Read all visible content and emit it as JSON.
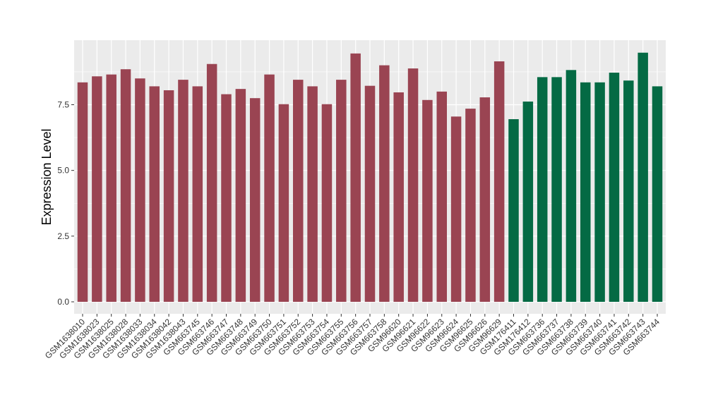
{
  "chart_data": {
    "type": "bar",
    "title": "",
    "xlabel": "",
    "ylabel": "Expression Level",
    "ylim": [
      0,
      9.8
    ],
    "yticks": [
      0,
      2.5,
      5,
      7.5
    ],
    "ytick_labels": [
      "0.0",
      "2.5",
      "5.0",
      "7.5"
    ],
    "grid": true,
    "legend": "none",
    "colors": {
      "group1": "#9a4452",
      "group2": "#046a44",
      "panel": "#ebebeb",
      "gridline": "#ffffff"
    },
    "categories": [
      "GSM1638010",
      "GSM1638023",
      "GSM1638025",
      "GSM1638028",
      "GSM1638033",
      "GSM1638034",
      "GSM1638042",
      "GSM1638043",
      "GSM663745",
      "GSM663746",
      "GSM663747",
      "GSM663748",
      "GSM663749",
      "GSM663750",
      "GSM663751",
      "GSM663752",
      "GSM663753",
      "GSM663754",
      "GSM663755",
      "GSM663756",
      "GSM663757",
      "GSM663758",
      "GSM96620",
      "GSM96621",
      "GSM96622",
      "GSM96623",
      "GSM96624",
      "GSM96625",
      "GSM96626",
      "GSM96629",
      "GSM176411",
      "GSM176412",
      "GSM663736",
      "GSM663737",
      "GSM663738",
      "GSM663739",
      "GSM663740",
      "GSM663741",
      "GSM663742",
      "GSM663743",
      "GSM663744"
    ],
    "values": [
      8.35,
      8.58,
      8.65,
      8.85,
      8.5,
      8.2,
      8.05,
      8.45,
      8.2,
      9.05,
      7.9,
      8.1,
      7.75,
      8.65,
      7.52,
      8.45,
      8.2,
      7.52,
      8.45,
      9.45,
      8.22,
      9.0,
      7.97,
      8.88,
      7.68,
      8.0,
      7.05,
      7.35,
      7.78,
      9.15,
      6.95,
      7.62,
      8.55,
      8.55,
      8.82,
      8.35,
      8.35,
      8.72,
      8.42,
      9.48,
      8.2
    ],
    "groups": [
      1,
      1,
      1,
      1,
      1,
      1,
      1,
      1,
      1,
      1,
      1,
      1,
      1,
      1,
      1,
      1,
      1,
      1,
      1,
      1,
      1,
      1,
      1,
      1,
      1,
      1,
      1,
      1,
      1,
      1,
      2,
      2,
      2,
      2,
      2,
      2,
      2,
      2,
      2,
      2,
      2
    ]
  }
}
